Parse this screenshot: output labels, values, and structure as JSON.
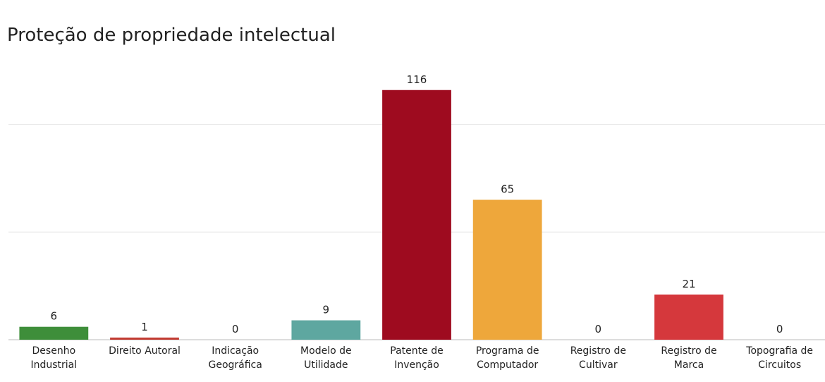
{
  "chart_data": {
    "type": "bar",
    "title": "Proteção de propriedade intelectual",
    "categories": [
      "Desenho Industrial",
      "Direito Autoral",
      "Indicação Geográfica",
      "Modelo de Utilidade",
      "Patente de Invenção",
      "Programa de Computador",
      "Registro de Cultivar",
      "Registro de Marca",
      "Topografia de Circuitos"
    ],
    "values": [
      6,
      1,
      0,
      9,
      116,
      65,
      0,
      21,
      0
    ],
    "colors": [
      "#3e8e3a",
      "#c23b32",
      "#888888",
      "#5ea7a0",
      "#9e0b1f",
      "#eea73b",
      "#888888",
      "#d5383c",
      "#888888"
    ],
    "ylim": [
      0,
      130
    ],
    "yticks": [
      0,
      50,
      100
    ],
    "grid": true
  }
}
